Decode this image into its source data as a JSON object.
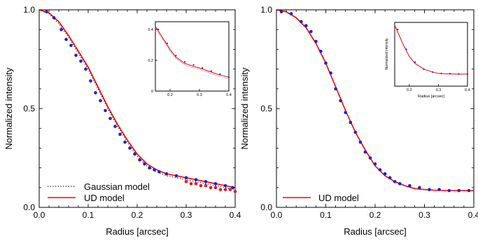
{
  "colors": {
    "ud_model": "#ff0000",
    "gaussian_model": "#000000",
    "data_blue": "#1f1fd8",
    "data_red": "#d81f1f"
  },
  "chart_data": [
    {
      "type": "line",
      "xlabel": "Radius [arcsec]",
      "ylabel": "Normalized intensity",
      "xlim": [
        0.0,
        0.4
      ],
      "ylim": [
        0.0,
        1.0
      ],
      "xticks": [
        "0.0",
        "0.1",
        "0.2",
        "0.3",
        "0.4"
      ],
      "yticks": [
        "0.0",
        "0.5",
        "1.0"
      ],
      "legend_position": "bottom-left",
      "series": [
        {
          "name": "Gaussian model",
          "style": "dotted",
          "x": [
            0.0,
            0.02,
            0.04,
            0.06,
            0.08,
            0.1,
            0.12,
            0.14,
            0.16,
            0.18,
            0.2,
            0.22,
            0.24,
            0.26,
            0.28,
            0.3,
            0.32,
            0.34,
            0.36,
            0.38,
            0.4
          ],
          "y": [
            1.0,
            0.98,
            0.93,
            0.86,
            0.78,
            0.7,
            0.6,
            0.5,
            0.41,
            0.33,
            0.26,
            0.21,
            0.18,
            0.16,
            0.15,
            0.14,
            0.13,
            0.12,
            0.11,
            0.1,
            0.09
          ]
        },
        {
          "name": "UD model",
          "style": "solid",
          "x": [
            0.0,
            0.02,
            0.04,
            0.06,
            0.08,
            0.1,
            0.12,
            0.14,
            0.16,
            0.18,
            0.2,
            0.22,
            0.24,
            0.26,
            0.28,
            0.3,
            0.32,
            0.34,
            0.36,
            0.38,
            0.4
          ],
          "y": [
            1.0,
            0.985,
            0.94,
            0.87,
            0.79,
            0.71,
            0.61,
            0.51,
            0.42,
            0.34,
            0.27,
            0.22,
            0.19,
            0.17,
            0.16,
            0.15,
            0.14,
            0.13,
            0.12,
            0.11,
            0.1
          ]
        },
        {
          "style": "blue-points",
          "x": [
            0.015,
            0.03,
            0.045,
            0.055,
            0.065,
            0.075,
            0.085,
            0.095,
            0.105,
            0.115,
            0.125,
            0.135,
            0.145,
            0.155,
            0.165,
            0.175,
            0.185,
            0.195,
            0.205,
            0.215,
            0.225,
            0.235,
            0.245,
            0.26,
            0.28,
            0.3,
            0.32,
            0.34,
            0.36,
            0.38,
            0.395
          ],
          "y": [
            0.99,
            0.96,
            0.9,
            0.85,
            0.82,
            0.77,
            0.74,
            0.7,
            0.64,
            0.58,
            0.54,
            0.49,
            0.45,
            0.41,
            0.37,
            0.33,
            0.3,
            0.27,
            0.24,
            0.22,
            0.2,
            0.19,
            0.18,
            0.17,
            0.16,
            0.15,
            0.14,
            0.13,
            0.12,
            0.11,
            0.1
          ]
        },
        {
          "style": "red-points",
          "x": [
            0.3,
            0.31,
            0.32,
            0.33,
            0.34,
            0.35,
            0.36,
            0.37,
            0.38,
            0.39,
            0.4
          ],
          "y": [
            0.13,
            0.12,
            0.12,
            0.11,
            0.11,
            0.1,
            0.1,
            0.09,
            0.09,
            0.09,
            0.08
          ]
        }
      ],
      "inset": {
        "xlim": [
          0.15,
          0.4
        ],
        "ylim": [
          0.0,
          0.45
        ],
        "xticks": [
          "0.2",
          "0.3",
          "0.4"
        ],
        "yticks": [
          "0",
          "0.2",
          "0.4"
        ],
        "series": [
          {
            "style": "solid",
            "x": [
              0.15,
              0.18,
              0.2,
              0.22,
              0.25,
              0.28,
              0.3,
              0.33,
              0.36,
              0.4
            ],
            "y": [
              0.42,
              0.33,
              0.27,
              0.22,
              0.18,
              0.16,
              0.15,
              0.13,
              0.11,
              0.09
            ]
          },
          {
            "style": "dotted",
            "x": [
              0.15,
              0.18,
              0.2,
              0.22,
              0.25,
              0.28,
              0.3,
              0.33,
              0.36,
              0.4
            ],
            "y": [
              0.41,
              0.32,
              0.26,
              0.21,
              0.17,
              0.15,
              0.14,
              0.12,
              0.1,
              0.08
            ]
          },
          {
            "style": "blue-points",
            "x": [
              0.16,
              0.19,
              0.22,
              0.25,
              0.28,
              0.31,
              0.34,
              0.37,
              0.4
            ],
            "y": [
              0.4,
              0.31,
              0.23,
              0.19,
              0.17,
              0.15,
              0.13,
              0.11,
              0.09
            ]
          }
        ]
      }
    },
    {
      "type": "line",
      "xlabel": "Radius [arcsec]",
      "ylabel": "Normalized intensity",
      "xlim": [
        0.0,
        0.4
      ],
      "ylim": [
        0.0,
        1.0
      ],
      "xticks": [
        "0.0",
        "0.1",
        "0.2",
        "0.3",
        "0.4"
      ],
      "yticks": [
        "0.0",
        "0.5",
        "1.0"
      ],
      "legend_position": "bottom-left",
      "series": [
        {
          "name": "UD model",
          "style": "solid",
          "x": [
            0.0,
            0.02,
            0.04,
            0.06,
            0.08,
            0.1,
            0.12,
            0.14,
            0.16,
            0.18,
            0.2,
            0.22,
            0.24,
            0.26,
            0.28,
            0.3,
            0.32,
            0.34,
            0.36,
            0.38,
            0.4
          ],
          "y": [
            1.0,
            0.99,
            0.96,
            0.91,
            0.83,
            0.73,
            0.61,
            0.49,
            0.38,
            0.29,
            0.21,
            0.16,
            0.13,
            0.11,
            0.095,
            0.09,
            0.087,
            0.085,
            0.085,
            0.085,
            0.085
          ]
        },
        {
          "style": "blue-points",
          "x": [
            0.01,
            0.03,
            0.05,
            0.06,
            0.07,
            0.08,
            0.09,
            0.1,
            0.11,
            0.12,
            0.13,
            0.14,
            0.15,
            0.16,
            0.17,
            0.18,
            0.19,
            0.2,
            0.21,
            0.22,
            0.23,
            0.24,
            0.25,
            0.27,
            0.29,
            0.31,
            0.33,
            0.35,
            0.37,
            0.39
          ],
          "y": [
            0.99,
            0.98,
            0.94,
            0.92,
            0.89,
            0.84,
            0.79,
            0.73,
            0.68,
            0.6,
            0.54,
            0.48,
            0.43,
            0.38,
            0.33,
            0.28,
            0.25,
            0.22,
            0.19,
            0.17,
            0.15,
            0.13,
            0.12,
            0.11,
            0.1,
            0.09,
            0.09,
            0.085,
            0.085,
            0.085
          ]
        }
      ],
      "inset": {
        "xlim": [
          0.15,
          0.4
        ],
        "ylim": [
          0.0,
          0.45
        ],
        "xticks": [
          "0.2",
          "0.3",
          "0.4"
        ],
        "yticks": [],
        "xlabel": "Radius [arcsec]",
        "ylabel": "Normalized intensity",
        "series": [
          {
            "style": "solid",
            "x": [
              0.15,
              0.18,
              0.2,
              0.22,
              0.25,
              0.28,
              0.3,
              0.33,
              0.36,
              0.4
            ],
            "y": [
              0.43,
              0.29,
              0.21,
              0.16,
              0.12,
              0.1,
              0.09,
              0.087,
              0.085,
              0.085
            ]
          },
          {
            "style": "blue-points",
            "x": [
              0.16,
              0.19,
              0.22,
              0.25,
              0.28,
              0.31,
              0.34,
              0.37,
              0.4
            ],
            "y": [
              0.4,
              0.26,
              0.17,
              0.12,
              0.1,
              0.09,
              0.088,
              0.086,
              0.085
            ]
          }
        ]
      }
    }
  ]
}
